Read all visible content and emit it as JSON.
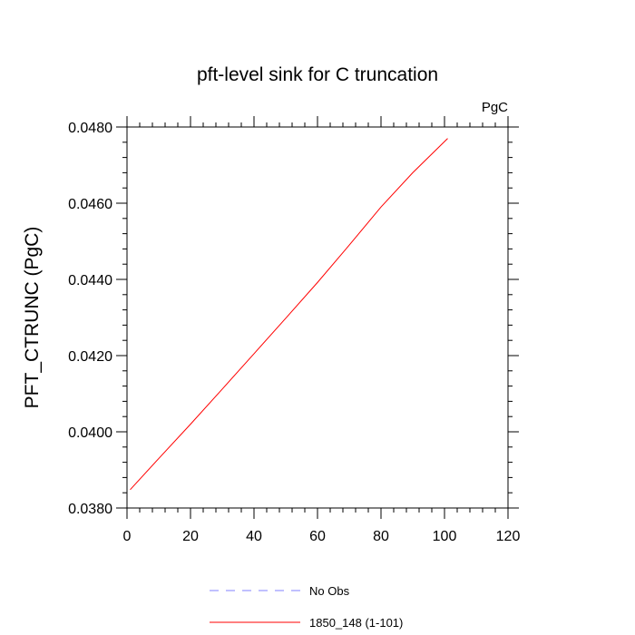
{
  "chart_data": {
    "type": "line",
    "title": "pft-level sink for C truncation",
    "units_label": "PgC",
    "xlabel": "",
    "ylabel": "PFT_CTRUNC  (PgC)",
    "xlim": [
      0,
      120
    ],
    "ylim": [
      0.038,
      0.048
    ],
    "x_ticks": [
      0,
      20,
      40,
      60,
      80,
      100,
      120
    ],
    "x_tick_labels": [
      "0",
      "20",
      "40",
      "60",
      "80",
      "100",
      "120"
    ],
    "y_ticks": [
      0.038,
      0.04,
      0.042,
      0.044,
      0.046,
      0.048
    ],
    "y_tick_labels": [
      "0.0380",
      "0.0400",
      "0.0420",
      "0.0440",
      "0.0460",
      "0.0480"
    ],
    "grid": false,
    "legend_position": "bottom",
    "series": [
      {
        "name": "No Obs",
        "color": "#8080ff",
        "dash": "dashed",
        "x": [],
        "y": []
      },
      {
        "name": "1850_148 (1-101)",
        "color": "#ff0000",
        "dash": "solid",
        "x": [
          1,
          10,
          20,
          30,
          40,
          50,
          60,
          70,
          80,
          90,
          101
        ],
        "y": [
          0.03848,
          0.0393,
          0.0402,
          0.04112,
          0.04205,
          0.04298,
          0.04392,
          0.0449,
          0.0459,
          0.0468,
          0.0477
        ]
      }
    ]
  }
}
